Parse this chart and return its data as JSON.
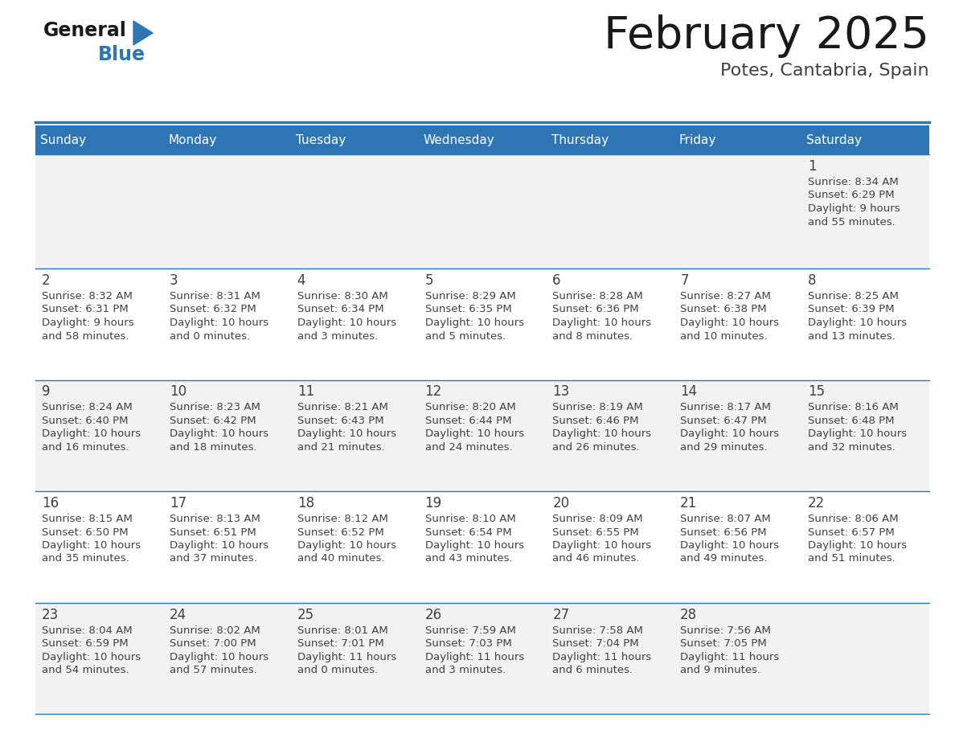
{
  "title": "February 2025",
  "subtitle": "Potes, Cantabria, Spain",
  "days_of_week": [
    "Sunday",
    "Monday",
    "Tuesday",
    "Wednesday",
    "Thursday",
    "Friday",
    "Saturday"
  ],
  "header_bg": "#2E75B6",
  "header_text": "#FFFFFF",
  "cell_bg_row0": "#F2F2F2",
  "cell_bg_row1": "#FFFFFF",
  "cell_bg_row2": "#F2F2F2",
  "cell_bg_row3": "#FFFFFF",
  "cell_bg_row4": "#F2F2F2",
  "cell_border": "#2E75B6",
  "day_number_color": "#404040",
  "info_text_color": "#404040",
  "title_color": "#1a1a1a",
  "subtitle_color": "#404040",
  "logo_general_color": "#1a1a1a",
  "logo_blue_color": "#2E75B6",
  "calendar_data": [
    [
      null,
      null,
      null,
      null,
      null,
      null,
      {
        "day": 1,
        "sunrise": "8:34 AM",
        "sunset": "6:29 PM",
        "daylight_line1": "Daylight: 9 hours",
        "daylight_line2": "and 55 minutes."
      }
    ],
    [
      {
        "day": 2,
        "sunrise": "8:32 AM",
        "sunset": "6:31 PM",
        "daylight_line1": "Daylight: 9 hours",
        "daylight_line2": "and 58 minutes."
      },
      {
        "day": 3,
        "sunrise": "8:31 AM",
        "sunset": "6:32 PM",
        "daylight_line1": "Daylight: 10 hours",
        "daylight_line2": "and 0 minutes."
      },
      {
        "day": 4,
        "sunrise": "8:30 AM",
        "sunset": "6:34 PM",
        "daylight_line1": "Daylight: 10 hours",
        "daylight_line2": "and 3 minutes."
      },
      {
        "day": 5,
        "sunrise": "8:29 AM",
        "sunset": "6:35 PM",
        "daylight_line1": "Daylight: 10 hours",
        "daylight_line2": "and 5 minutes."
      },
      {
        "day": 6,
        "sunrise": "8:28 AM",
        "sunset": "6:36 PM",
        "daylight_line1": "Daylight: 10 hours",
        "daylight_line2": "and 8 minutes."
      },
      {
        "day": 7,
        "sunrise": "8:27 AM",
        "sunset": "6:38 PM",
        "daylight_line1": "Daylight: 10 hours",
        "daylight_line2": "and 10 minutes."
      },
      {
        "day": 8,
        "sunrise": "8:25 AM",
        "sunset": "6:39 PM",
        "daylight_line1": "Daylight: 10 hours",
        "daylight_line2": "and 13 minutes."
      }
    ],
    [
      {
        "day": 9,
        "sunrise": "8:24 AM",
        "sunset": "6:40 PM",
        "daylight_line1": "Daylight: 10 hours",
        "daylight_line2": "and 16 minutes."
      },
      {
        "day": 10,
        "sunrise": "8:23 AM",
        "sunset": "6:42 PM",
        "daylight_line1": "Daylight: 10 hours",
        "daylight_line2": "and 18 minutes."
      },
      {
        "day": 11,
        "sunrise": "8:21 AM",
        "sunset": "6:43 PM",
        "daylight_line1": "Daylight: 10 hours",
        "daylight_line2": "and 21 minutes."
      },
      {
        "day": 12,
        "sunrise": "8:20 AM",
        "sunset": "6:44 PM",
        "daylight_line1": "Daylight: 10 hours",
        "daylight_line2": "and 24 minutes."
      },
      {
        "day": 13,
        "sunrise": "8:19 AM",
        "sunset": "6:46 PM",
        "daylight_line1": "Daylight: 10 hours",
        "daylight_line2": "and 26 minutes."
      },
      {
        "day": 14,
        "sunrise": "8:17 AM",
        "sunset": "6:47 PM",
        "daylight_line1": "Daylight: 10 hours",
        "daylight_line2": "and 29 minutes."
      },
      {
        "day": 15,
        "sunrise": "8:16 AM",
        "sunset": "6:48 PM",
        "daylight_line1": "Daylight: 10 hours",
        "daylight_line2": "and 32 minutes."
      }
    ],
    [
      {
        "day": 16,
        "sunrise": "8:15 AM",
        "sunset": "6:50 PM",
        "daylight_line1": "Daylight: 10 hours",
        "daylight_line2": "and 35 minutes."
      },
      {
        "day": 17,
        "sunrise": "8:13 AM",
        "sunset": "6:51 PM",
        "daylight_line1": "Daylight: 10 hours",
        "daylight_line2": "and 37 minutes."
      },
      {
        "day": 18,
        "sunrise": "8:12 AM",
        "sunset": "6:52 PM",
        "daylight_line1": "Daylight: 10 hours",
        "daylight_line2": "and 40 minutes."
      },
      {
        "day": 19,
        "sunrise": "8:10 AM",
        "sunset": "6:54 PM",
        "daylight_line1": "Daylight: 10 hours",
        "daylight_line2": "and 43 minutes."
      },
      {
        "day": 20,
        "sunrise": "8:09 AM",
        "sunset": "6:55 PM",
        "daylight_line1": "Daylight: 10 hours",
        "daylight_line2": "and 46 minutes."
      },
      {
        "day": 21,
        "sunrise": "8:07 AM",
        "sunset": "6:56 PM",
        "daylight_line1": "Daylight: 10 hours",
        "daylight_line2": "and 49 minutes."
      },
      {
        "day": 22,
        "sunrise": "8:06 AM",
        "sunset": "6:57 PM",
        "daylight_line1": "Daylight: 10 hours",
        "daylight_line2": "and 51 minutes."
      }
    ],
    [
      {
        "day": 23,
        "sunrise": "8:04 AM",
        "sunset": "6:59 PM",
        "daylight_line1": "Daylight: 10 hours",
        "daylight_line2": "and 54 minutes."
      },
      {
        "day": 24,
        "sunrise": "8:02 AM",
        "sunset": "7:00 PM",
        "daylight_line1": "Daylight: 10 hours",
        "daylight_line2": "and 57 minutes."
      },
      {
        "day": 25,
        "sunrise": "8:01 AM",
        "sunset": "7:01 PM",
        "daylight_line1": "Daylight: 11 hours",
        "daylight_line2": "and 0 minutes."
      },
      {
        "day": 26,
        "sunrise": "7:59 AM",
        "sunset": "7:03 PM",
        "daylight_line1": "Daylight: 11 hours",
        "daylight_line2": "and 3 minutes."
      },
      {
        "day": 27,
        "sunrise": "7:58 AM",
        "sunset": "7:04 PM",
        "daylight_line1": "Daylight: 11 hours",
        "daylight_line2": "and 6 minutes."
      },
      {
        "day": 28,
        "sunrise": "7:56 AM",
        "sunset": "7:05 PM",
        "daylight_line1": "Daylight: 11 hours",
        "daylight_line2": "and 9 minutes."
      },
      null
    ]
  ],
  "figsize": [
    11.88,
    9.18
  ],
  "dpi": 100
}
